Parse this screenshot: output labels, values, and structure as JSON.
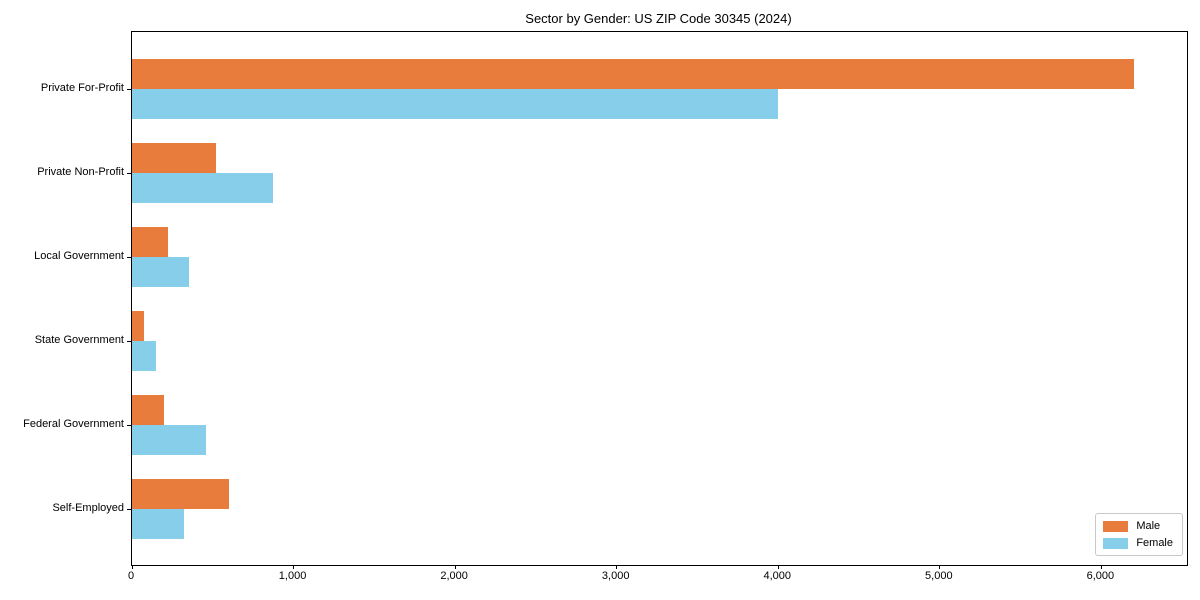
{
  "chart_data": {
    "type": "bar",
    "orientation": "horizontal",
    "title": "Sector by Gender: US ZIP Code 30345 (2024)",
    "xlabel": "",
    "ylabel": "",
    "categories": [
      "Private For-Profit",
      "Private Non-Profit",
      "Local Government",
      "State Government",
      "Federal Government",
      "Self-Employed"
    ],
    "series": [
      {
        "name": "Male",
        "color": "#e87c3c",
        "values": [
          6200,
          520,
          220,
          75,
          200,
          600
        ]
      },
      {
        "name": "Female",
        "color": "#87ceeb",
        "values": [
          4000,
          870,
          350,
          150,
          460,
          320
        ]
      }
    ],
    "xlim": [
      0,
      6530
    ],
    "xticks": [
      0,
      1000,
      2000,
      3000,
      4000,
      5000,
      6000
    ],
    "xtick_labels": [
      "0",
      "1,000",
      "2,000",
      "3,000",
      "4,000",
      "5,000",
      "6,000"
    ],
    "grid": false,
    "legend_position": "lower right",
    "background_color": "#ffffff",
    "axis_color": "#000000"
  }
}
